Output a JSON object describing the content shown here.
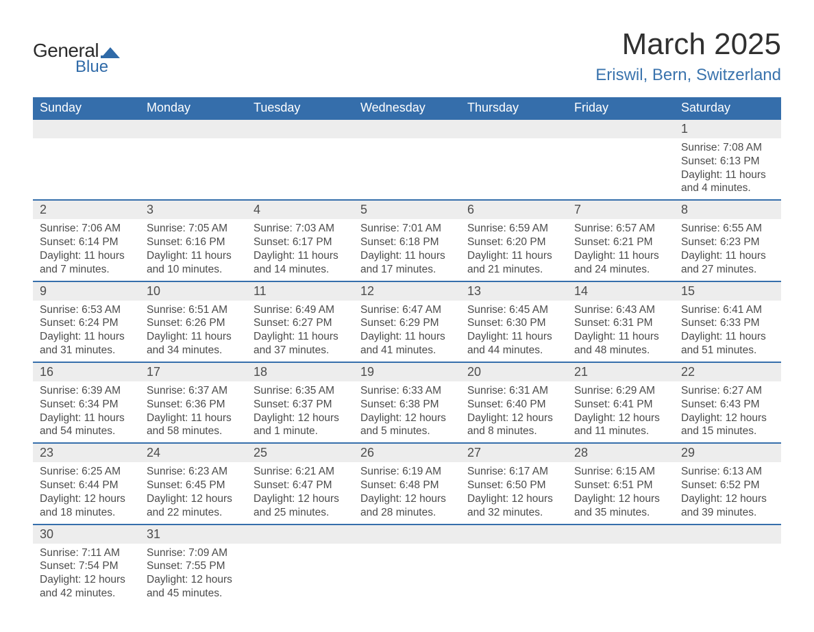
{
  "logo": {
    "general": "General",
    "blue": "Blue",
    "shape_color": "#2f6aa8"
  },
  "title": "March 2025",
  "location": "Eriswil, Bern, Switzerland",
  "colors": {
    "header_bg": "#356eab",
    "header_text": "#ffffff",
    "daynum_bg": "#ededed",
    "text": "#4b4b4b",
    "accent": "#356eab",
    "title_text": "#303030",
    "location_text": "#3a73ad"
  },
  "typography": {
    "title_fontsize": 44,
    "location_fontsize": 24,
    "weekday_fontsize": 18,
    "daynum_fontsize": 18,
    "detail_fontsize": 15.5
  },
  "weekdays": [
    "Sunday",
    "Monday",
    "Tuesday",
    "Wednesday",
    "Thursday",
    "Friday",
    "Saturday"
  ],
  "weeks": [
    [
      null,
      null,
      null,
      null,
      null,
      null,
      {
        "n": "1",
        "sunrise": "Sunrise: 7:08 AM",
        "sunset": "Sunset: 6:13 PM",
        "daylight": "Daylight: 11 hours and 4 minutes."
      }
    ],
    [
      {
        "n": "2",
        "sunrise": "Sunrise: 7:06 AM",
        "sunset": "Sunset: 6:14 PM",
        "daylight": "Daylight: 11 hours and 7 minutes."
      },
      {
        "n": "3",
        "sunrise": "Sunrise: 7:05 AM",
        "sunset": "Sunset: 6:16 PM",
        "daylight": "Daylight: 11 hours and 10 minutes."
      },
      {
        "n": "4",
        "sunrise": "Sunrise: 7:03 AM",
        "sunset": "Sunset: 6:17 PM",
        "daylight": "Daylight: 11 hours and 14 minutes."
      },
      {
        "n": "5",
        "sunrise": "Sunrise: 7:01 AM",
        "sunset": "Sunset: 6:18 PM",
        "daylight": "Daylight: 11 hours and 17 minutes."
      },
      {
        "n": "6",
        "sunrise": "Sunrise: 6:59 AM",
        "sunset": "Sunset: 6:20 PM",
        "daylight": "Daylight: 11 hours and 21 minutes."
      },
      {
        "n": "7",
        "sunrise": "Sunrise: 6:57 AM",
        "sunset": "Sunset: 6:21 PM",
        "daylight": "Daylight: 11 hours and 24 minutes."
      },
      {
        "n": "8",
        "sunrise": "Sunrise: 6:55 AM",
        "sunset": "Sunset: 6:23 PM",
        "daylight": "Daylight: 11 hours and 27 minutes."
      }
    ],
    [
      {
        "n": "9",
        "sunrise": "Sunrise: 6:53 AM",
        "sunset": "Sunset: 6:24 PM",
        "daylight": "Daylight: 11 hours and 31 minutes."
      },
      {
        "n": "10",
        "sunrise": "Sunrise: 6:51 AM",
        "sunset": "Sunset: 6:26 PM",
        "daylight": "Daylight: 11 hours and 34 minutes."
      },
      {
        "n": "11",
        "sunrise": "Sunrise: 6:49 AM",
        "sunset": "Sunset: 6:27 PM",
        "daylight": "Daylight: 11 hours and 37 minutes."
      },
      {
        "n": "12",
        "sunrise": "Sunrise: 6:47 AM",
        "sunset": "Sunset: 6:29 PM",
        "daylight": "Daylight: 11 hours and 41 minutes."
      },
      {
        "n": "13",
        "sunrise": "Sunrise: 6:45 AM",
        "sunset": "Sunset: 6:30 PM",
        "daylight": "Daylight: 11 hours and 44 minutes."
      },
      {
        "n": "14",
        "sunrise": "Sunrise: 6:43 AM",
        "sunset": "Sunset: 6:31 PM",
        "daylight": "Daylight: 11 hours and 48 minutes."
      },
      {
        "n": "15",
        "sunrise": "Sunrise: 6:41 AM",
        "sunset": "Sunset: 6:33 PM",
        "daylight": "Daylight: 11 hours and 51 minutes."
      }
    ],
    [
      {
        "n": "16",
        "sunrise": "Sunrise: 6:39 AM",
        "sunset": "Sunset: 6:34 PM",
        "daylight": "Daylight: 11 hours and 54 minutes."
      },
      {
        "n": "17",
        "sunrise": "Sunrise: 6:37 AM",
        "sunset": "Sunset: 6:36 PM",
        "daylight": "Daylight: 11 hours and 58 minutes."
      },
      {
        "n": "18",
        "sunrise": "Sunrise: 6:35 AM",
        "sunset": "Sunset: 6:37 PM",
        "daylight": "Daylight: 12 hours and 1 minute."
      },
      {
        "n": "19",
        "sunrise": "Sunrise: 6:33 AM",
        "sunset": "Sunset: 6:38 PM",
        "daylight": "Daylight: 12 hours and 5 minutes."
      },
      {
        "n": "20",
        "sunrise": "Sunrise: 6:31 AM",
        "sunset": "Sunset: 6:40 PM",
        "daylight": "Daylight: 12 hours and 8 minutes."
      },
      {
        "n": "21",
        "sunrise": "Sunrise: 6:29 AM",
        "sunset": "Sunset: 6:41 PM",
        "daylight": "Daylight: 12 hours and 11 minutes."
      },
      {
        "n": "22",
        "sunrise": "Sunrise: 6:27 AM",
        "sunset": "Sunset: 6:43 PM",
        "daylight": "Daylight: 12 hours and 15 minutes."
      }
    ],
    [
      {
        "n": "23",
        "sunrise": "Sunrise: 6:25 AM",
        "sunset": "Sunset: 6:44 PM",
        "daylight": "Daylight: 12 hours and 18 minutes."
      },
      {
        "n": "24",
        "sunrise": "Sunrise: 6:23 AM",
        "sunset": "Sunset: 6:45 PM",
        "daylight": "Daylight: 12 hours and 22 minutes."
      },
      {
        "n": "25",
        "sunrise": "Sunrise: 6:21 AM",
        "sunset": "Sunset: 6:47 PM",
        "daylight": "Daylight: 12 hours and 25 minutes."
      },
      {
        "n": "26",
        "sunrise": "Sunrise: 6:19 AM",
        "sunset": "Sunset: 6:48 PM",
        "daylight": "Daylight: 12 hours and 28 minutes."
      },
      {
        "n": "27",
        "sunrise": "Sunrise: 6:17 AM",
        "sunset": "Sunset: 6:50 PM",
        "daylight": "Daylight: 12 hours and 32 minutes."
      },
      {
        "n": "28",
        "sunrise": "Sunrise: 6:15 AM",
        "sunset": "Sunset: 6:51 PM",
        "daylight": "Daylight: 12 hours and 35 minutes."
      },
      {
        "n": "29",
        "sunrise": "Sunrise: 6:13 AM",
        "sunset": "Sunset: 6:52 PM",
        "daylight": "Daylight: 12 hours and 39 minutes."
      }
    ],
    [
      {
        "n": "30",
        "sunrise": "Sunrise: 7:11 AM",
        "sunset": "Sunset: 7:54 PM",
        "daylight": "Daylight: 12 hours and 42 minutes."
      },
      {
        "n": "31",
        "sunrise": "Sunrise: 7:09 AM",
        "sunset": "Sunset: 7:55 PM",
        "daylight": "Daylight: 12 hours and 45 minutes."
      },
      null,
      null,
      null,
      null,
      null
    ]
  ]
}
